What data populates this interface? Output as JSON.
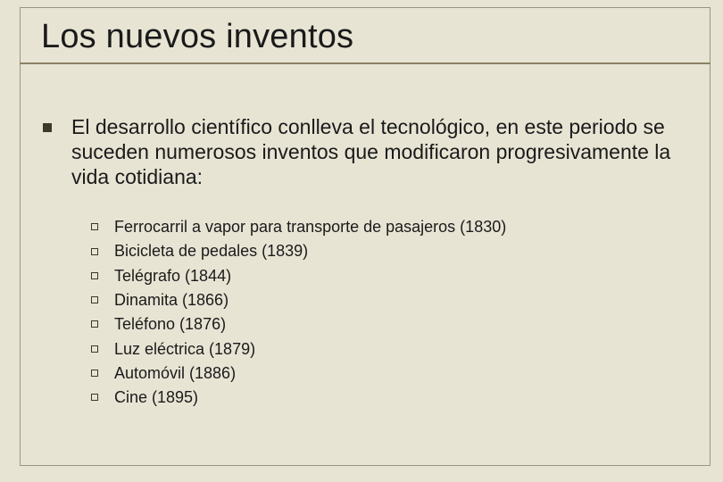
{
  "slide": {
    "title": "Los nuevos inventos",
    "background_color": "#e8e4d4",
    "frame_color": "#9a9580",
    "underline_color": "#8a8264",
    "title_fontsize": 38,
    "body_fontsize": 23,
    "sub_fontsize": 18,
    "text_color": "#1a1a1a",
    "intro": "El desarrollo científico conlleva el tecnológico, en este periodo se suceden numerosos inventos que modificaron progresivamente la vida cotidiana:",
    "items": [
      "Ferrocarril a vapor para transporte de pasajeros (1830)",
      "Bicicleta de pedales (1839)",
      "Telégrafo (1844)",
      "Dinamita (1866)",
      "Teléfono (1876)",
      "Luz eléctrica (1879)",
      "Automóvil (1886)",
      "Cine (1895)"
    ]
  }
}
